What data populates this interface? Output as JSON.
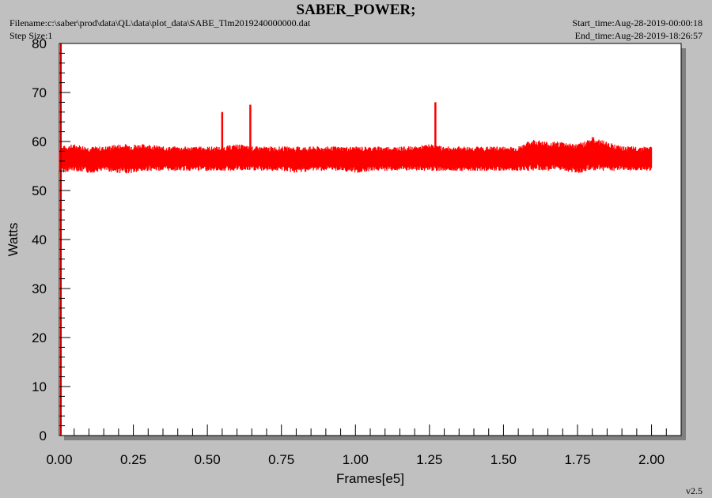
{
  "header": {
    "title": "SABER_POWER;",
    "filename": "Filename:c:\\saber\\prod\\data\\QL\\data\\plot_data\\SABE_Tlm2019240000000.dat",
    "step_size": "Step Size:1",
    "start_time": "Start_time:Aug-28-2019-00:00:18",
    "end_time": "End_time:Aug-28-2019-18:26:57"
  },
  "footer": {
    "version": "v2.5"
  },
  "colors": {
    "series": "#ff0000",
    "background": "#c0c0c0",
    "plot_area": "#ffffff"
  },
  "chart_data": {
    "type": "line",
    "title": "SABER_POWER;",
    "xlabel": "Frames[e5]",
    "ylabel": "Watts",
    "xlim": [
      0,
      2.1
    ],
    "ylim": [
      0,
      80
    ],
    "x_ticks": [
      "0.00",
      "0.25",
      "0.50",
      "0.75",
      "1.00",
      "1.25",
      "1.50",
      "1.75",
      "2.00"
    ],
    "y_ticks": [
      "0",
      "10",
      "20",
      "30",
      "40",
      "50",
      "60",
      "70",
      "80"
    ],
    "grid": false,
    "series": [
      {
        "color": "#ff0000",
        "x": [
          0,
          0.05,
          0.1,
          0.15,
          0.2,
          0.25,
          0.3,
          0.35,
          0.4,
          0.45,
          0.5,
          0.55,
          0.6,
          0.65,
          0.7,
          0.75,
          0.8,
          0.85,
          0.9,
          0.95,
          1.0,
          1.05,
          1.1,
          1.15,
          1.2,
          1.25,
          1.3,
          1.35,
          1.4,
          1.45,
          1.5,
          1.55,
          1.6,
          1.65,
          1.7,
          1.75,
          1.8,
          1.85,
          1.9,
          1.95,
          2.0
        ],
        "y_min": [
          53.5,
          54,
          53.5,
          54,
          53.5,
          53.5,
          54,
          54,
          54,
          54,
          54,
          54,
          54,
          54,
          54,
          54,
          53.5,
          54,
          54,
          54,
          53.5,
          54,
          54,
          54,
          54,
          54,
          54,
          54,
          54,
          54,
          54,
          54,
          54,
          54,
          54,
          53.5,
          54,
          54,
          54,
          54,
          54
        ],
        "y_max": [
          59,
          59.5,
          59,
          59,
          59.5,
          59.5,
          59.5,
          59,
          59,
          59,
          59,
          59,
          59.5,
          59,
          59,
          59,
          59,
          59,
          59,
          59,
          59,
          59,
          59,
          59,
          59,
          59.5,
          59,
          59,
          59,
          59,
          59,
          59,
          60.5,
          60,
          60,
          59.5,
          61,
          60,
          59,
          59,
          59
        ]
      }
    ],
    "spikes": [
      {
        "x": 0.55,
        "y": 66
      },
      {
        "x": 0.645,
        "y": 67.5
      },
      {
        "x": 1.27,
        "y": 68
      }
    ]
  }
}
